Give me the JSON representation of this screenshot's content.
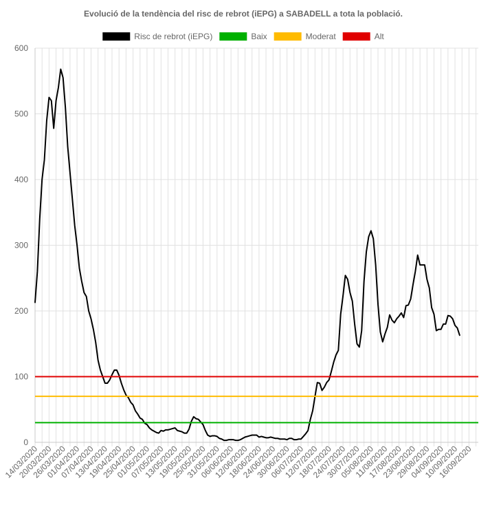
{
  "chart_data": {
    "type": "line",
    "title": "Evolució de la tendència del risc de rebrot (iEPG) a SABADELL a tota la població.",
    "ylim": [
      0,
      600
    ],
    "y_ticks": [
      "0",
      "100",
      "200",
      "300",
      "400",
      "500",
      "600"
    ],
    "x_tick_labels": [
      "14/03/2020",
      "20/03/2020",
      "26/03/2020",
      "01/04/2020",
      "07/04/2020",
      "13/04/2020",
      "19/04/2020",
      "25/04/2020",
      "01/05/2020",
      "07/05/2020",
      "13/05/2020",
      "19/05/2020",
      "25/05/2020",
      "31/05/2020",
      "06/06/2020",
      "12/06/2020",
      "18/06/2020",
      "24/06/2020",
      "30/06/2020",
      "06/07/2020",
      "12/07/2020",
      "18/07/2020",
      "24/07/2020",
      "30/07/2020",
      "05/08/2020",
      "11/08/2020",
      "17/08/2020",
      "23/08/2020",
      "29/08/2020",
      "04/09/2020",
      "10/09/2020",
      "16/09/2020"
    ],
    "x_range": [
      "14/03/2020",
      "20/09/2020"
    ],
    "grid": true,
    "legend_position": "top",
    "series": [
      {
        "name": "Risc de rebrot (iEPG)",
        "color": "#000000",
        "points": [
          [
            "14/03/2020",
            213
          ],
          [
            "15/03/2020",
            260
          ],
          [
            "16/03/2020",
            340
          ],
          [
            "17/03/2020",
            400
          ],
          [
            "18/03/2020",
            430
          ],
          [
            "19/03/2020",
            490
          ],
          [
            "20/03/2020",
            525
          ],
          [
            "21/03/2020",
            520
          ],
          [
            "22/03/2020",
            478
          ],
          [
            "23/03/2020",
            520
          ],
          [
            "24/03/2020",
            540
          ],
          [
            "25/03/2020",
            568
          ],
          [
            "26/03/2020",
            555
          ],
          [
            "27/03/2020",
            510
          ],
          [
            "28/03/2020",
            450
          ],
          [
            "29/03/2020",
            410
          ],
          [
            "30/03/2020",
            370
          ],
          [
            "31/03/2020",
            330
          ],
          [
            "01/04/2020",
            300
          ],
          [
            "02/04/2020",
            265
          ],
          [
            "03/04/2020",
            245
          ],
          [
            "04/04/2020",
            228
          ],
          [
            "05/04/2020",
            222
          ],
          [
            "06/04/2020",
            200
          ],
          [
            "07/04/2020",
            188
          ],
          [
            "08/04/2020",
            172
          ],
          [
            "09/04/2020",
            152
          ],
          [
            "10/04/2020",
            125
          ],
          [
            "11/04/2020",
            110
          ],
          [
            "12/04/2020",
            100
          ],
          [
            "13/04/2020",
            90
          ],
          [
            "14/04/2020",
            90
          ],
          [
            "15/04/2020",
            95
          ],
          [
            "16/04/2020",
            103
          ],
          [
            "17/04/2020",
            110
          ],
          [
            "18/04/2020",
            110
          ],
          [
            "19/04/2020",
            102
          ],
          [
            "20/04/2020",
            90
          ],
          [
            "21/04/2020",
            80
          ],
          [
            "22/04/2020",
            72
          ],
          [
            "23/04/2020",
            68
          ],
          [
            "24/04/2020",
            61
          ],
          [
            "25/04/2020",
            57
          ],
          [
            "26/04/2020",
            48
          ],
          [
            "27/04/2020",
            43
          ],
          [
            "28/04/2020",
            37
          ],
          [
            "29/04/2020",
            35
          ],
          [
            "30/04/2020",
            29
          ],
          [
            "01/05/2020",
            27
          ],
          [
            "02/05/2020",
            22
          ],
          [
            "03/05/2020",
            19
          ],
          [
            "04/05/2020",
            17
          ],
          [
            "05/05/2020",
            15
          ],
          [
            "06/05/2020",
            14
          ],
          [
            "07/05/2020",
            18
          ],
          [
            "08/05/2020",
            17
          ],
          [
            "09/05/2020",
            19
          ],
          [
            "10/05/2020",
            19
          ],
          [
            "11/05/2020",
            20
          ],
          [
            "12/05/2020",
            21
          ],
          [
            "13/05/2020",
            22
          ],
          [
            "14/05/2020",
            18
          ],
          [
            "15/05/2020",
            17
          ],
          [
            "16/05/2020",
            16
          ],
          [
            "17/05/2020",
            14
          ],
          [
            "18/05/2020",
            14
          ],
          [
            "19/05/2020",
            20
          ],
          [
            "20/05/2020",
            32
          ],
          [
            "21/05/2020",
            39
          ],
          [
            "22/05/2020",
            36
          ],
          [
            "23/05/2020",
            35
          ],
          [
            "24/05/2020",
            31
          ],
          [
            "25/05/2020",
            27
          ],
          [
            "26/05/2020",
            18
          ],
          [
            "27/05/2020",
            11
          ],
          [
            "28/05/2020",
            9
          ],
          [
            "29/05/2020",
            10
          ],
          [
            "30/05/2020",
            10
          ],
          [
            "31/05/2020",
            9
          ],
          [
            "01/06/2020",
            6
          ],
          [
            "02/06/2020",
            5
          ],
          [
            "03/06/2020",
            3
          ],
          [
            "04/06/2020",
            3
          ],
          [
            "05/06/2020",
            4
          ],
          [
            "06/06/2020",
            4
          ],
          [
            "07/06/2020",
            4
          ],
          [
            "08/06/2020",
            3
          ],
          [
            "09/06/2020",
            3
          ],
          [
            "10/06/2020",
            4
          ],
          [
            "11/06/2020",
            6
          ],
          [
            "12/06/2020",
            8
          ],
          [
            "13/06/2020",
            9
          ],
          [
            "14/06/2020",
            10
          ],
          [
            "15/06/2020",
            11
          ],
          [
            "16/06/2020",
            11
          ],
          [
            "17/06/2020",
            11
          ],
          [
            "18/06/2020",
            8
          ],
          [
            "19/06/2020",
            9
          ],
          [
            "20/06/2020",
            8
          ],
          [
            "21/06/2020",
            7
          ],
          [
            "22/06/2020",
            7
          ],
          [
            "23/06/2020",
            8
          ],
          [
            "24/06/2020",
            7
          ],
          [
            "25/06/2020",
            6
          ],
          [
            "26/06/2020",
            6
          ],
          [
            "27/06/2020",
            5
          ],
          [
            "28/06/2020",
            5
          ],
          [
            "29/06/2020",
            5
          ],
          [
            "30/06/2020",
            4
          ],
          [
            "01/07/2020",
            6
          ],
          [
            "02/07/2020",
            6
          ],
          [
            "03/07/2020",
            4
          ],
          [
            "04/07/2020",
            4
          ],
          [
            "05/07/2020",
            5
          ],
          [
            "06/07/2020",
            5
          ],
          [
            "07/07/2020",
            9
          ],
          [
            "08/07/2020",
            13
          ],
          [
            "09/07/2020",
            18
          ],
          [
            "10/07/2020",
            35
          ],
          [
            "11/07/2020",
            48
          ],
          [
            "12/07/2020",
            70
          ],
          [
            "13/07/2020",
            91
          ],
          [
            "14/07/2020",
            90
          ],
          [
            "15/07/2020",
            79
          ],
          [
            "16/07/2020",
            84
          ],
          [
            "17/07/2020",
            91
          ],
          [
            "18/07/2020",
            95
          ],
          [
            "19/07/2020",
            108
          ],
          [
            "20/07/2020",
            122
          ],
          [
            "21/07/2020",
            133
          ],
          [
            "22/07/2020",
            140
          ],
          [
            "23/07/2020",
            195
          ],
          [
            "24/07/2020",
            223
          ],
          [
            "25/07/2020",
            254
          ],
          [
            "26/07/2020",
            248
          ],
          [
            "27/07/2020",
            228
          ],
          [
            "28/07/2020",
            215
          ],
          [
            "29/07/2020",
            180
          ],
          [
            "30/07/2020",
            150
          ],
          [
            "31/07/2020",
            145
          ],
          [
            "01/08/2020",
            170
          ],
          [
            "02/08/2020",
            245
          ],
          [
            "03/08/2020",
            290
          ],
          [
            "04/08/2020",
            313
          ],
          [
            "05/08/2020",
            322
          ],
          [
            "06/08/2020",
            310
          ],
          [
            "07/08/2020",
            270
          ],
          [
            "08/08/2020",
            210
          ],
          [
            "09/08/2020",
            168
          ],
          [
            "10/08/2020",
            153
          ],
          [
            "11/08/2020",
            165
          ],
          [
            "12/08/2020",
            175
          ],
          [
            "13/08/2020",
            194
          ],
          [
            "14/08/2020",
            186
          ],
          [
            "15/08/2020",
            182
          ],
          [
            "16/08/2020",
            188
          ],
          [
            "17/08/2020",
            192
          ],
          [
            "18/08/2020",
            197
          ],
          [
            "19/08/2020",
            190
          ],
          [
            "20/08/2020",
            208
          ],
          [
            "21/08/2020",
            209
          ],
          [
            "22/08/2020",
            218
          ],
          [
            "23/08/2020",
            240
          ],
          [
            "24/08/2020",
            260
          ],
          [
            "25/08/2020",
            285
          ],
          [
            "26/08/2020",
            270
          ],
          [
            "27/08/2020",
            270
          ],
          [
            "28/08/2020",
            270
          ],
          [
            "29/08/2020",
            248
          ],
          [
            "30/08/2020",
            235
          ],
          [
            "31/08/2020",
            205
          ],
          [
            "01/09/2020",
            195
          ],
          [
            "02/09/2020",
            170
          ],
          [
            "03/09/2020",
            172
          ],
          [
            "04/09/2020",
            172
          ],
          [
            "05/09/2020",
            180
          ],
          [
            "06/09/2020",
            180
          ],
          [
            "07/09/2020",
            193
          ],
          [
            "08/09/2020",
            192
          ],
          [
            "09/09/2020",
            188
          ],
          [
            "10/09/2020",
            178
          ],
          [
            "11/09/2020",
            174
          ],
          [
            "12/09/2020",
            163
          ]
        ]
      },
      {
        "name": "Baix",
        "color": "#00b000",
        "constant": 30
      },
      {
        "name": "Moderat",
        "color": "#ffbb00",
        "constant": 70
      },
      {
        "name": "Alt",
        "color": "#e00000",
        "constant": 100
      }
    ]
  }
}
